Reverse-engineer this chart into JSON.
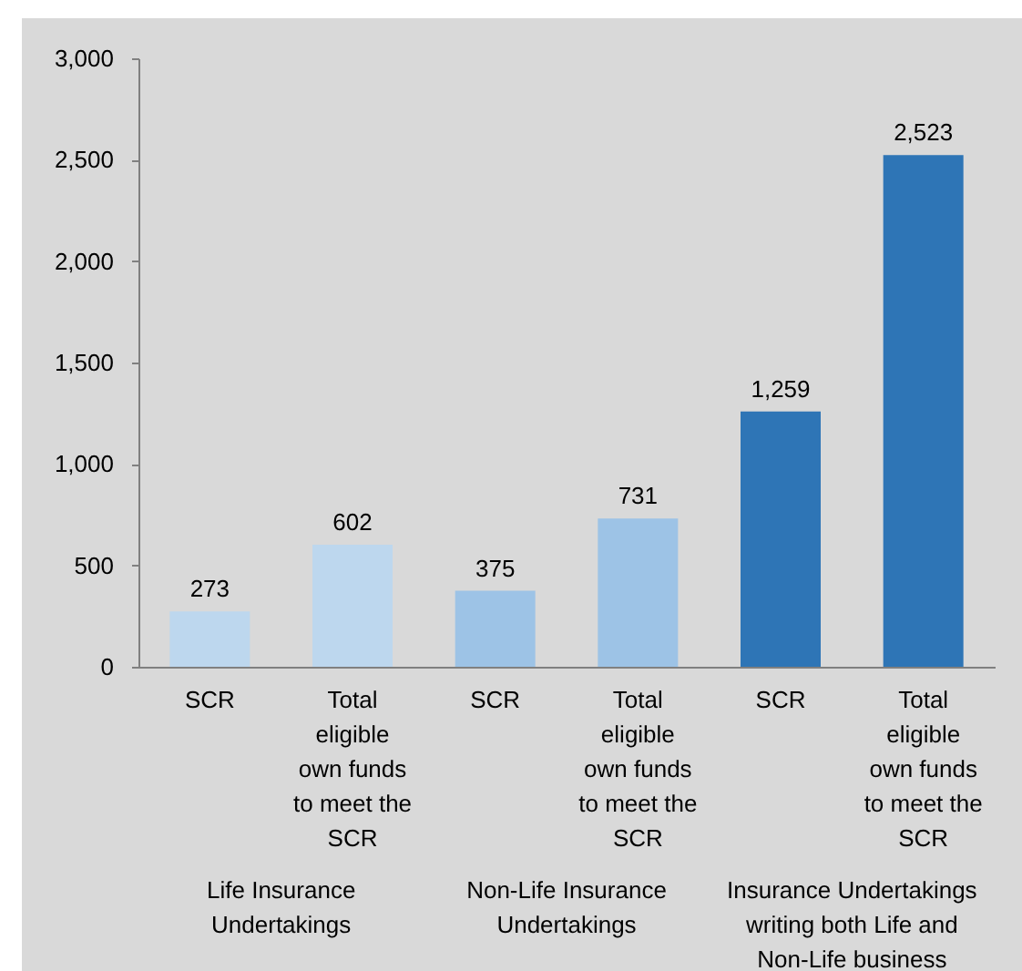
{
  "chart_data": {
    "type": "bar",
    "categories": [
      "SCR",
      "Total eligible own funds to meet the SCR",
      "SCR",
      "Total eligible own funds to meet the SCR",
      "SCR",
      "Total eligible own funds to meet the SCR"
    ],
    "values": [
      273,
      602,
      375,
      731,
      1259,
      2523
    ],
    "value_labels": [
      "273",
      "602",
      "375",
      "731",
      "1,259",
      "2,523"
    ],
    "colors": [
      "#bdd7ee",
      "#bdd7ee",
      "#9dc3e6",
      "#9dc3e6",
      "#2e75b6",
      "#2e75b6"
    ],
    "ylim": [
      0,
      3000
    ],
    "yticks": [
      0,
      500,
      {
        "value": 1000,
        "label": "1,000"
      },
      {
        "value": 1500,
        "label": "1,500"
      },
      {
        "value": 2000,
        "label": "2,000"
      },
      {
        "value": 2500,
        "label": "2,500"
      },
      {
        "value": 3000,
        "label": "3,000"
      }
    ],
    "annotations": [
      "Life Insurance Undertakings",
      "Non-Life Insurance Undertakings",
      "Insurance Undertakings writing both Life and Non-Life business"
    ]
  }
}
